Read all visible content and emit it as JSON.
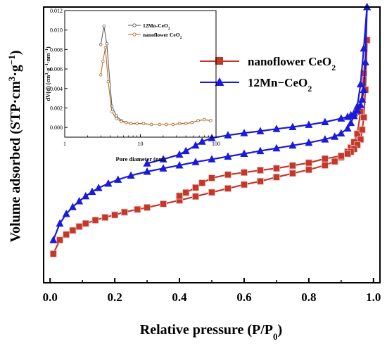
{
  "chart_data": [
    {
      "type": "line",
      "xlabel": "Relative pressure (P/P0)",
      "xlabel_main": "Relative pressure (P/P",
      "xlabel_sub": "0",
      "xlabel_end": ")",
      "ylabel": "Volume adsorbed (STP·cm3·g−1)",
      "ylabel_main": "Volume adsorbed (STP·cm",
      "ylabel_sup1": "3",
      "ylabel_mid": "·g",
      "ylabel_sup2": "−1",
      "ylabel_end": ")",
      "xlim": [
        -0.02,
        1.02
      ],
      "ylim": [
        0,
        100
      ],
      "x_ticks": [
        "0.0",
        "0.2",
        "0.4",
        "0.6",
        "0.8",
        "1.0"
      ],
      "y_tick_labels_shown": false,
      "legend_position": "top-right",
      "series": [
        {
          "name": "nanoflower CeO2",
          "name_main": "nanoflower CeO",
          "name_sub": "2",
          "color": "#c0392b",
          "marker": "square",
          "adsorption": [
            [
              0.01,
              10.5
            ],
            [
              0.03,
              15.5
            ],
            [
              0.05,
              17.5
            ],
            [
              0.07,
              19
            ],
            [
              0.09,
              20.4
            ],
            [
              0.11,
              21.5
            ],
            [
              0.14,
              22.7
            ],
            [
              0.17,
              23.7
            ],
            [
              0.2,
              24.6
            ],
            [
              0.23,
              25.6
            ],
            [
              0.27,
              26.6
            ],
            [
              0.3,
              27.3
            ],
            [
              0.35,
              28.6
            ],
            [
              0.4,
              29.9
            ],
            [
              0.45,
              31.3
            ],
            [
              0.5,
              32.8
            ],
            [
              0.55,
              34.2
            ],
            [
              0.6,
              35.6
            ],
            [
              0.65,
              36.8
            ],
            [
              0.7,
              38.3
            ],
            [
              0.75,
              39.7
            ],
            [
              0.8,
              41
            ],
            [
              0.85,
              42.6
            ],
            [
              0.88,
              44
            ],
            [
              0.9,
              45.5
            ],
            [
              0.92,
              47.5
            ],
            [
              0.93,
              49
            ],
            [
              0.94,
              51
            ],
            [
              0.95,
              54
            ],
            [
              0.96,
              62
            ],
            [
              0.97,
              76
            ],
            [
              0.98,
              88
            ]
          ],
          "desorption": [
            [
              0.98,
              88
            ],
            [
              0.975,
              70
            ],
            [
              0.97,
              60
            ],
            [
              0.965,
              55.5
            ],
            [
              0.96,
              52
            ],
            [
              0.95,
              50
            ],
            [
              0.94,
              48.5
            ],
            [
              0.93,
              47.5
            ],
            [
              0.92,
              46.8
            ],
            [
              0.9,
              46
            ],
            [
              0.85,
              45
            ],
            [
              0.8,
              43.5
            ],
            [
              0.75,
              42.5
            ],
            [
              0.7,
              41.5
            ],
            [
              0.65,
              40.8
            ],
            [
              0.6,
              40
            ],
            [
              0.55,
              39.2
            ],
            [
              0.5,
              38
            ],
            [
              0.47,
              36.2
            ],
            [
              0.45,
              34.5
            ],
            [
              0.42,
              32.7
            ],
            [
              0.4,
              31.5
            ]
          ]
        },
        {
          "name": "12Mn−CeO2",
          "name_main": "12Mn−CeO",
          "name_sub": "2",
          "color": "#1a1adb",
          "marker": "triangle",
          "adsorption": [
            [
              0.01,
              15.5
            ],
            [
              0.03,
              21.5
            ],
            [
              0.05,
              25
            ],
            [
              0.07,
              27.5
            ],
            [
              0.09,
              29.6
            ],
            [
              0.11,
              31.4
            ],
            [
              0.13,
              33
            ],
            [
              0.15,
              34.4
            ],
            [
              0.18,
              36
            ],
            [
              0.21,
              37.4
            ],
            [
              0.25,
              38.9
            ],
            [
              0.3,
              40.3
            ],
            [
              0.35,
              41.5
            ],
            [
              0.4,
              42.6
            ],
            [
              0.45,
              43.8
            ],
            [
              0.5,
              44.8
            ],
            [
              0.55,
              45.8
            ],
            [
              0.6,
              46.8
            ],
            [
              0.65,
              47.8
            ],
            [
              0.7,
              48.8
            ],
            [
              0.75,
              49.8
            ],
            [
              0.8,
              50.8
            ],
            [
              0.85,
              52
            ],
            [
              0.88,
              53
            ],
            [
              0.9,
              54.2
            ],
            [
              0.92,
              56
            ],
            [
              0.93,
              58
            ],
            [
              0.94,
              60.5
            ],
            [
              0.95,
              64
            ],
            [
              0.96,
              72
            ],
            [
              0.97,
              85
            ],
            [
              0.98,
              100
            ]
          ],
          "desorption": [
            [
              0.98,
              100
            ],
            [
              0.975,
              80
            ],
            [
              0.97,
              70
            ],
            [
              0.965,
              66.5
            ],
            [
              0.96,
              64.5
            ],
            [
              0.95,
              62.5
            ],
            [
              0.94,
              61.5
            ],
            [
              0.93,
              60.8
            ],
            [
              0.92,
              60.2
            ],
            [
              0.9,
              59.6
            ],
            [
              0.85,
              58.3
            ],
            [
              0.8,
              57.3
            ],
            [
              0.75,
              56.5
            ],
            [
              0.7,
              55.8
            ],
            [
              0.65,
              55
            ],
            [
              0.6,
              54.3
            ],
            [
              0.55,
              53.5
            ],
            [
              0.5,
              52.5
            ],
            [
              0.47,
              51.2
            ],
            [
              0.45,
              49.8
            ],
            [
              0.42,
              47.8
            ],
            [
              0.4,
              46.5
            ],
            [
              0.35,
              44.8
            ],
            [
              0.3,
              43.3
            ]
          ]
        }
      ]
    },
    {
      "type": "line",
      "xlabel": "Pore diameter (nm)",
      "ylabel": "dV(d) (cm3·g−1·nm−1)",
      "ylabel_main": "dV(d) (cm",
      "ylabel_sup1": "3",
      "ylabel_mid": "·g",
      "ylabel_sup2": "−1",
      "ylabel_mid2": "·nm",
      "ylabel_sup3": "−1",
      "ylabel_end": ")",
      "x_scale": "log",
      "xlim": [
        1,
        100
      ],
      "ylim": [
        -0.001,
        0.012
      ],
      "x_ticks": [
        "1",
        "10",
        "100"
      ],
      "y_ticks": [
        "0.000",
        "0.002",
        "0.004",
        "0.006",
        "0.008",
        "0.010",
        "0.012"
      ],
      "legend_position": "top-right",
      "series": [
        {
          "name": "12Mn-CeO2",
          "name_main": "12Mn-CeO",
          "name_sub": "2",
          "color": "#555555",
          "marker": "circle",
          "points": [
            [
              3.0,
              0.0085
            ],
            [
              3.3,
              0.0104
            ],
            [
              3.6,
              0.0086
            ],
            [
              4.2,
              0.0022
            ],
            [
              4.8,
              0.0012
            ],
            [
              5.6,
              0.0007
            ],
            [
              6.5,
              0.0005
            ],
            [
              7.5,
              0.0004
            ],
            [
              9,
              0.0004
            ],
            [
              11,
              0.0004
            ],
            [
              14,
              0.0003
            ],
            [
              18,
              0.0003
            ],
            [
              22,
              0.0003
            ],
            [
              27,
              0.0003
            ],
            [
              33,
              0.0004
            ],
            [
              40,
              0.0004
            ],
            [
              48,
              0.0005
            ],
            [
              58,
              0.0007
            ],
            [
              70,
              0.0008
            ],
            [
              85,
              0.0007
            ]
          ]
        },
        {
          "name": "nanoflower CeO2",
          "name_main": "nanoflower CeO",
          "name_sub": "2",
          "color": "#b5651d",
          "marker": "circle",
          "points": [
            [
              3.0,
              0.0054
            ],
            [
              3.2,
              0.0068
            ],
            [
              3.45,
              0.0082
            ],
            [
              3.75,
              0.0047
            ],
            [
              4.2,
              0.0016
            ],
            [
              4.8,
              0.0009
            ],
            [
              5.6,
              0.0006
            ],
            [
              6.5,
              0.0005
            ],
            [
              7.5,
              0.0004
            ],
            [
              9,
              0.0004
            ],
            [
              11,
              0.0004
            ],
            [
              14,
              0.0003
            ],
            [
              18,
              0.0003
            ],
            [
              22,
              0.0003
            ],
            [
              27,
              0.0003
            ],
            [
              33,
              0.0004
            ],
            [
              40,
              0.0004
            ],
            [
              48,
              0.0005
            ],
            [
              58,
              0.0007
            ],
            [
              70,
              0.0008
            ],
            [
              85,
              0.0007
            ]
          ]
        }
      ]
    }
  ]
}
